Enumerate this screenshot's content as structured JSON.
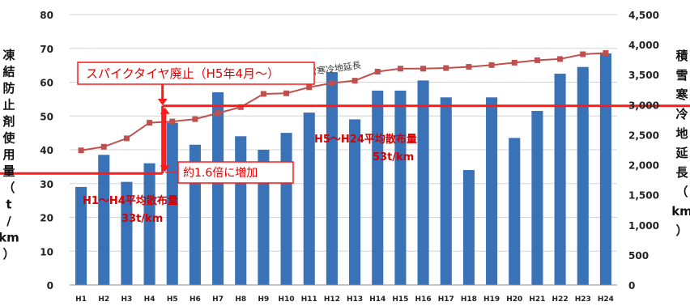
{
  "chart_data": {
    "type": "bar",
    "categories": [
      "H1",
      "H2",
      "H3",
      "H4",
      "H5",
      "H6",
      "H7",
      "H8",
      "H9",
      "H10",
      "H11",
      "H12",
      "H13",
      "H14",
      "H15",
      "H16",
      "H17",
      "H18",
      "H19",
      "H20",
      "H21",
      "H22",
      "H23",
      "H24"
    ],
    "left_axis": {
      "label": [
        "凍",
        "結",
        "防",
        "止",
        "剤",
        "使",
        "用",
        "量",
        "（",
        "t",
        "/",
        "km",
        "）"
      ],
      "range": [
        0,
        80
      ],
      "ticks": [
        "0",
        "10",
        "20",
        "30",
        "40",
        "50",
        "60",
        "70",
        "80"
      ]
    },
    "right_axis": {
      "label": [
        "積",
        "雪",
        "寒",
        "冷",
        "地",
        "延",
        "長",
        "（",
        "km",
        "）"
      ],
      "range": [
        0,
        4500
      ],
      "ticks": [
        "0",
        "500",
        "1,000",
        "1,500",
        "2,000",
        "2,500",
        "3,000",
        "3,500",
        "4,000",
        "4,500"
      ]
    },
    "series": [
      {
        "type": "bar",
        "axis": "left",
        "color": "#3a72b8",
        "values": [
          29,
          38.5,
          30.5,
          36,
          48,
          41.5,
          57,
          44,
          40,
          45,
          51,
          63,
          49,
          57.5,
          57.5,
          60.5,
          55.5,
          34,
          55.5,
          43.5,
          51.5,
          62.5,
          64.5,
          68.5
        ]
      },
      {
        "type": "line",
        "axis": "right",
        "name": "積雪寒冷地延長",
        "color": "#c0504d",
        "values": [
          2240,
          2300,
          2440,
          2700,
          2720,
          2760,
          2860,
          2960,
          3180,
          3190,
          3290,
          3360,
          3400,
          3550,
          3600,
          3600,
          3610,
          3630,
          3660,
          3700,
          3740,
          3760,
          3840,
          3860
        ]
      }
    ],
    "period_averages": [
      {
        "from": "H1",
        "to": "H4",
        "value": 33,
        "line1": "H1～H4平均散布量",
        "line2": "33t/km"
      },
      {
        "from": "H5",
        "to": "H24",
        "value": 53,
        "line1": "H5～H24平均散布量",
        "line2": "53t/km"
      }
    ],
    "annotations": {
      "event": "スパイクタイヤ廃止（H5年4月～）",
      "increase": "約1.6倍に増加"
    },
    "grid": true,
    "legend": "none"
  }
}
